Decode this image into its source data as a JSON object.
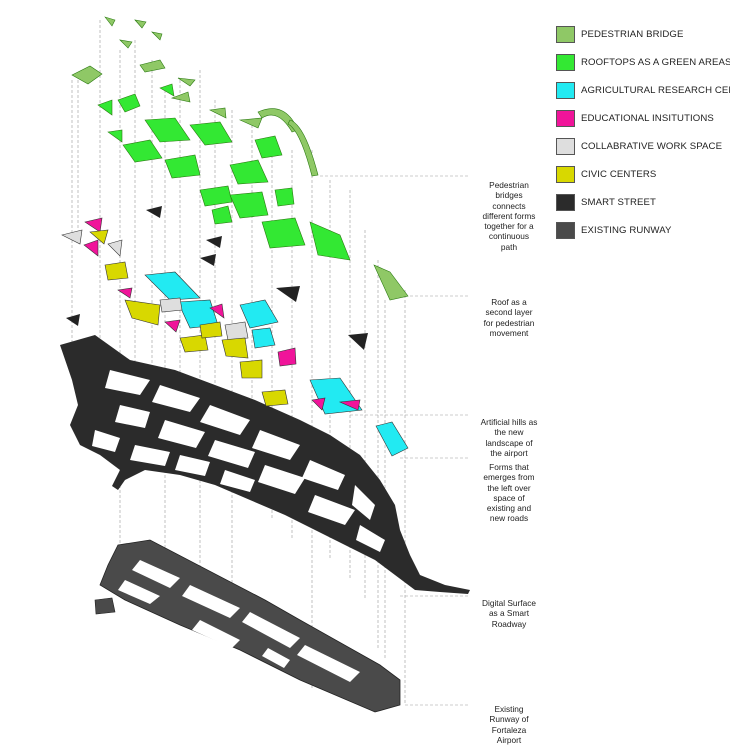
{
  "legend": {
    "items": [
      {
        "label": "PEDESTRIAN BRIDGE",
        "color": "#8fc866",
        "icon": "pedestrian-bridge-swatch"
      },
      {
        "label": "ROOFTOPS AS A GREEN  AREAS",
        "color": "#33e833",
        "icon": "rooftops-green-swatch"
      },
      {
        "label": "AGRICULTURAL RESEARCH CENTER",
        "color": "#22eaf2",
        "icon": "agricultural-research-swatch"
      },
      {
        "label": "EDUCATIONAL INSITUTIONS",
        "color": "#f0149a",
        "icon": "educational-swatch"
      },
      {
        "label": "COLLABRATIVE WORK SPACE",
        "color": "#dedede",
        "icon": "collaborative-swatch"
      },
      {
        "label": "CIVIC CENTERS",
        "color": "#d8d800",
        "icon": "civic-centers-swatch"
      },
      {
        "label": "SMART STREET",
        "color": "#2b2b2b",
        "icon": "smart-street-swatch"
      },
      {
        "label": "EXISTING RUNWAY",
        "color": "#4a4a4a",
        "icon": "existing-runway-swatch"
      }
    ]
  },
  "annotations": [
    {
      "id": "bridges",
      "lines": [
        "Pedestrian",
        "bridges",
        "connects",
        "different forms",
        "together for a",
        "continuous",
        "path"
      ]
    },
    {
      "id": "roof",
      "lines": [
        "Roof as a",
        "second layer",
        "for pedestrian",
        "movement"
      ]
    },
    {
      "id": "hills",
      "lines": [
        "Artificial hills as",
        "the new",
        "landscape of",
        "the airport"
      ]
    },
    {
      "id": "forms",
      "lines": [
        "Forms that",
        "emerges from",
        "the left over",
        "space of",
        "existing and",
        "new roads"
      ]
    },
    {
      "id": "surface",
      "lines": [
        "Digital Surface",
        "as a Smart",
        "Roadway"
      ]
    },
    {
      "id": "runway",
      "lines": [
        "Existing",
        "Runway of",
        "Fortaleza",
        "Airport"
      ]
    }
  ]
}
